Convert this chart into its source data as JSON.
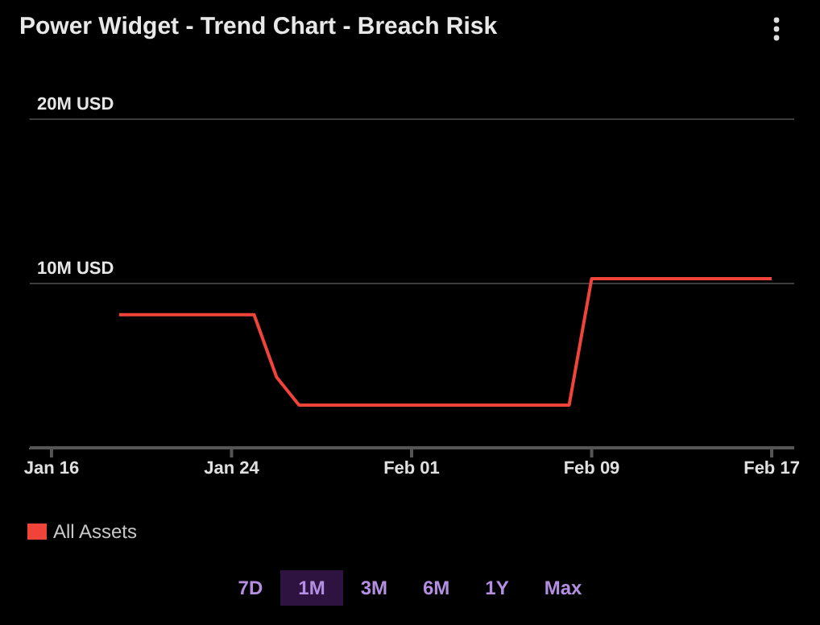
{
  "chart_data": {
    "type": "line",
    "title": "Power Widget - Trend Chart - Breach Risk",
    "x": [
      "--01-19",
      "--01-25",
      "--01-26",
      "--01-27",
      "--02-08",
      "--02-09",
      "--02-17"
    ],
    "series": [
      {
        "name": "All Assets",
        "color": "#f0443a",
        "values": [
          8.1,
          8.1,
          4.3,
          2.6,
          2.6,
          10.3,
          10.3
        ]
      }
    ],
    "xlim": [
      "--01-15",
      "--02-18"
    ],
    "xticks": [
      {
        "value": "--01-16",
        "label": "Jan 16"
      },
      {
        "value": "--01-24",
        "label": "Jan 24"
      },
      {
        "value": "--02-01",
        "label": "Feb 01"
      },
      {
        "value": "--02-09",
        "label": "Feb 09"
      },
      {
        "value": "--02-17",
        "label": "Feb 17"
      }
    ],
    "ylim": [
      0,
      20
    ],
    "yticks": [
      {
        "value": 0,
        "label": null
      },
      {
        "value": 10,
        "label": "10M USD"
      },
      {
        "value": 20,
        "label": "20M USD"
      }
    ],
    "grid": "y",
    "legend": "bottom left",
    "marker": "none",
    "line_style": "solid",
    "annotations": [
      "7D",
      "1M",
      "3M",
      "6M",
      "1Y",
      "Max"
    ]
  }
}
